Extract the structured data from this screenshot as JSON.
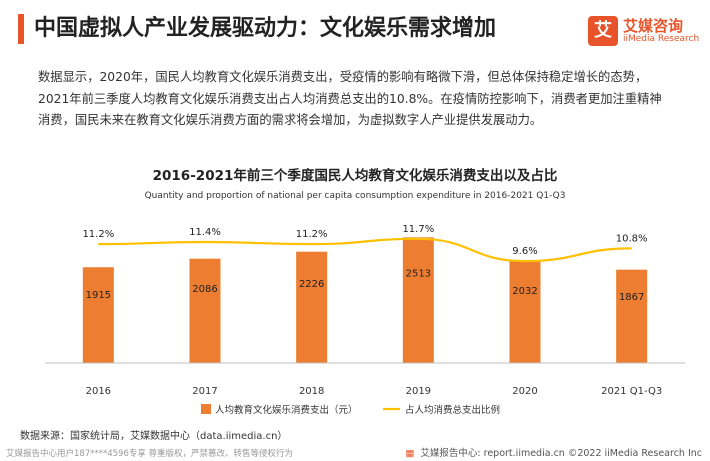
{
  "header": {
    "title": "中国虚拟人产业发展驱动力：文化娱乐需求增加",
    "logo_mark": "艾",
    "logo_name": "艾媒咨询",
    "logo_sub": "iiMedia Research"
  },
  "intro": "数据显示，2020年，国民人均教育文化娱乐消费支出，受疫情的影响有略微下滑，但总体保持稳定增长的态势，2021年前三季度人均教育文化娱乐消费支出占人均消费总支出的10.8%。在疫情防控影响下，消费者更加注重精神消费，国民未来在教育文化娱乐消费方面的需求将会增加，为虚拟数字人产业提供发展动力。",
  "chart_data": {
    "type": "bar",
    "title": "2016-2021年前三个季度国民人均教育文化娱乐消费支出以及占比",
    "subtitle": "Quantity and proportion of national per capita consumption expenditure in 2016-2021 Q1-Q3",
    "categories": [
      "2016",
      "2017",
      "2018",
      "2019",
      "2020",
      "2021 Q1-Q3"
    ],
    "series": [
      {
        "name": "人均教育文化娱乐消费支出（元）",
        "type": "bar",
        "color": "#ed7d31",
        "values": [
          1915,
          2086,
          2226,
          2513,
          2032,
          1867
        ],
        "labels": [
          "1915",
          "2086",
          "2226",
          "2513",
          "2032",
          "1867"
        ]
      },
      {
        "name": "占人均消费总支出比例",
        "type": "line",
        "color": "#ffc000",
        "values": [
          11.2,
          11.4,
          11.2,
          11.7,
          9.6,
          10.8
        ],
        "labels": [
          "11.2%",
          "11.4%",
          "11.2%",
          "11.7%",
          "9.6%",
          "10.8%"
        ]
      }
    ],
    "bar_ylim": [
      0,
      2600
    ],
    "line_ylim": [
      0,
      12.25
    ],
    "grid": false,
    "legend_position": "bottom"
  },
  "footer": {
    "source": "数据来源：国家统计局，艾媒数据中心（data.iimedia.cn）",
    "left_note": "艾媒报告中心用户187****4596专享 尊重版权，严禁篡改、转售等侵权行为",
    "right_icon": "document-icon",
    "right": "艾媒报告中心: report.iimedia.cn  ©2022  iiMedia Research  Inc"
  }
}
